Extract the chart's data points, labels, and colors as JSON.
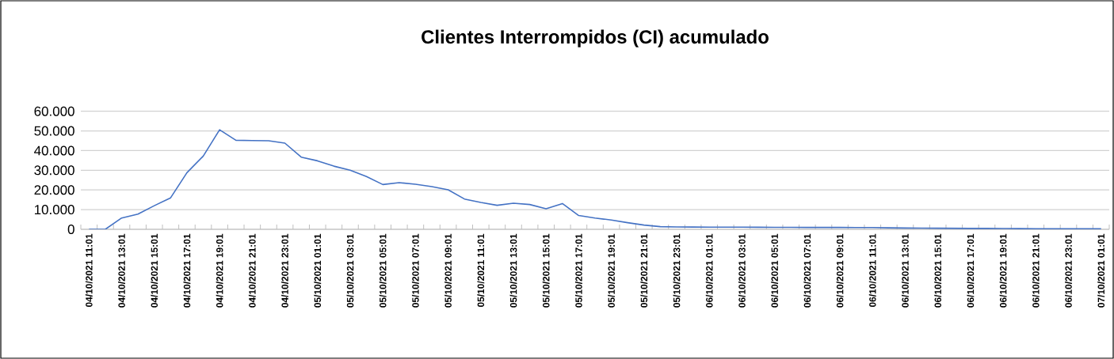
{
  "chart_data": {
    "type": "line",
    "title": "Clientes Interrompidos (CI) acumulado",
    "categories": [
      "04/10/2021 11:01",
      null,
      "04/10/2021 13:01",
      null,
      "04/10/2021 15:01",
      null,
      "04/10/2021 17:01",
      null,
      "04/10/2021 19:01",
      null,
      "04/10/2021 21:01",
      null,
      "04/10/2021 23:01",
      null,
      "05/10/2021 01:01",
      null,
      "05/10/2021 03:01",
      null,
      "05/10/2021 05:01",
      null,
      "05/10/2021 07:01",
      null,
      "05/10/2021 09:01",
      null,
      "05/10/2021 11:01",
      null,
      "05/10/2021 13:01",
      null,
      "05/10/2021 15:01",
      null,
      "05/10/2021 17:01",
      null,
      "05/10/2021 19:01",
      null,
      "05/10/2021 21:01",
      null,
      "05/10/2021 23:01",
      null,
      "06/10/2021 01:01",
      null,
      "06/10/2021 03:01",
      null,
      "06/10/2021 05:01",
      null,
      "06/10/2021 07:01",
      null,
      "06/10/2021 09:01",
      null,
      "06/10/2021 11:01",
      null,
      "06/10/2021 13:01",
      null,
      "06/10/2021 15:01",
      null,
      "06/10/2021 17:01",
      null,
      "06/10/2021 19:01",
      null,
      "06/10/2021 21:01",
      null,
      "06/10/2021 23:01",
      null,
      "07/10/2021 01:01"
    ],
    "series": [
      {
        "color": "#4472c4",
        "values": [
          0,
          0,
          5750,
          7750,
          12000,
          16000,
          28800,
          37200,
          50600,
          45250,
          45100,
          45000,
          43800,
          36700,
          34800,
          32100,
          30000,
          26800,
          22750,
          23700,
          22900,
          21700,
          20100,
          15400,
          13650,
          12200,
          13250,
          12600,
          10450,
          13100,
          7000,
          5750,
          4700,
          3350,
          2150,
          1350,
          1200,
          1150,
          1100,
          1100,
          1100,
          1050,
          1000,
          1000,
          950,
          950,
          950,
          900,
          900,
          750,
          650,
          600,
          550,
          500,
          450,
          450,
          400,
          350,
          300,
          300,
          250,
          250,
          250
        ]
      }
    ],
    "ylim": [
      0,
      60000
    ],
    "yticks": [
      0,
      {
        "value": 10000,
        "label": "10.000"
      },
      {
        "value": 20000,
        "label": "20.000"
      },
      {
        "value": 30000,
        "label": "30.000"
      },
      {
        "value": 40000,
        "label": "40.000"
      },
      {
        "value": 50000,
        "label": "50.000"
      },
      {
        "value": 60000,
        "label": "60.000"
      }
    ],
    "grid": "y",
    "legend": false,
    "marker": "none",
    "line_style": "solid"
  }
}
